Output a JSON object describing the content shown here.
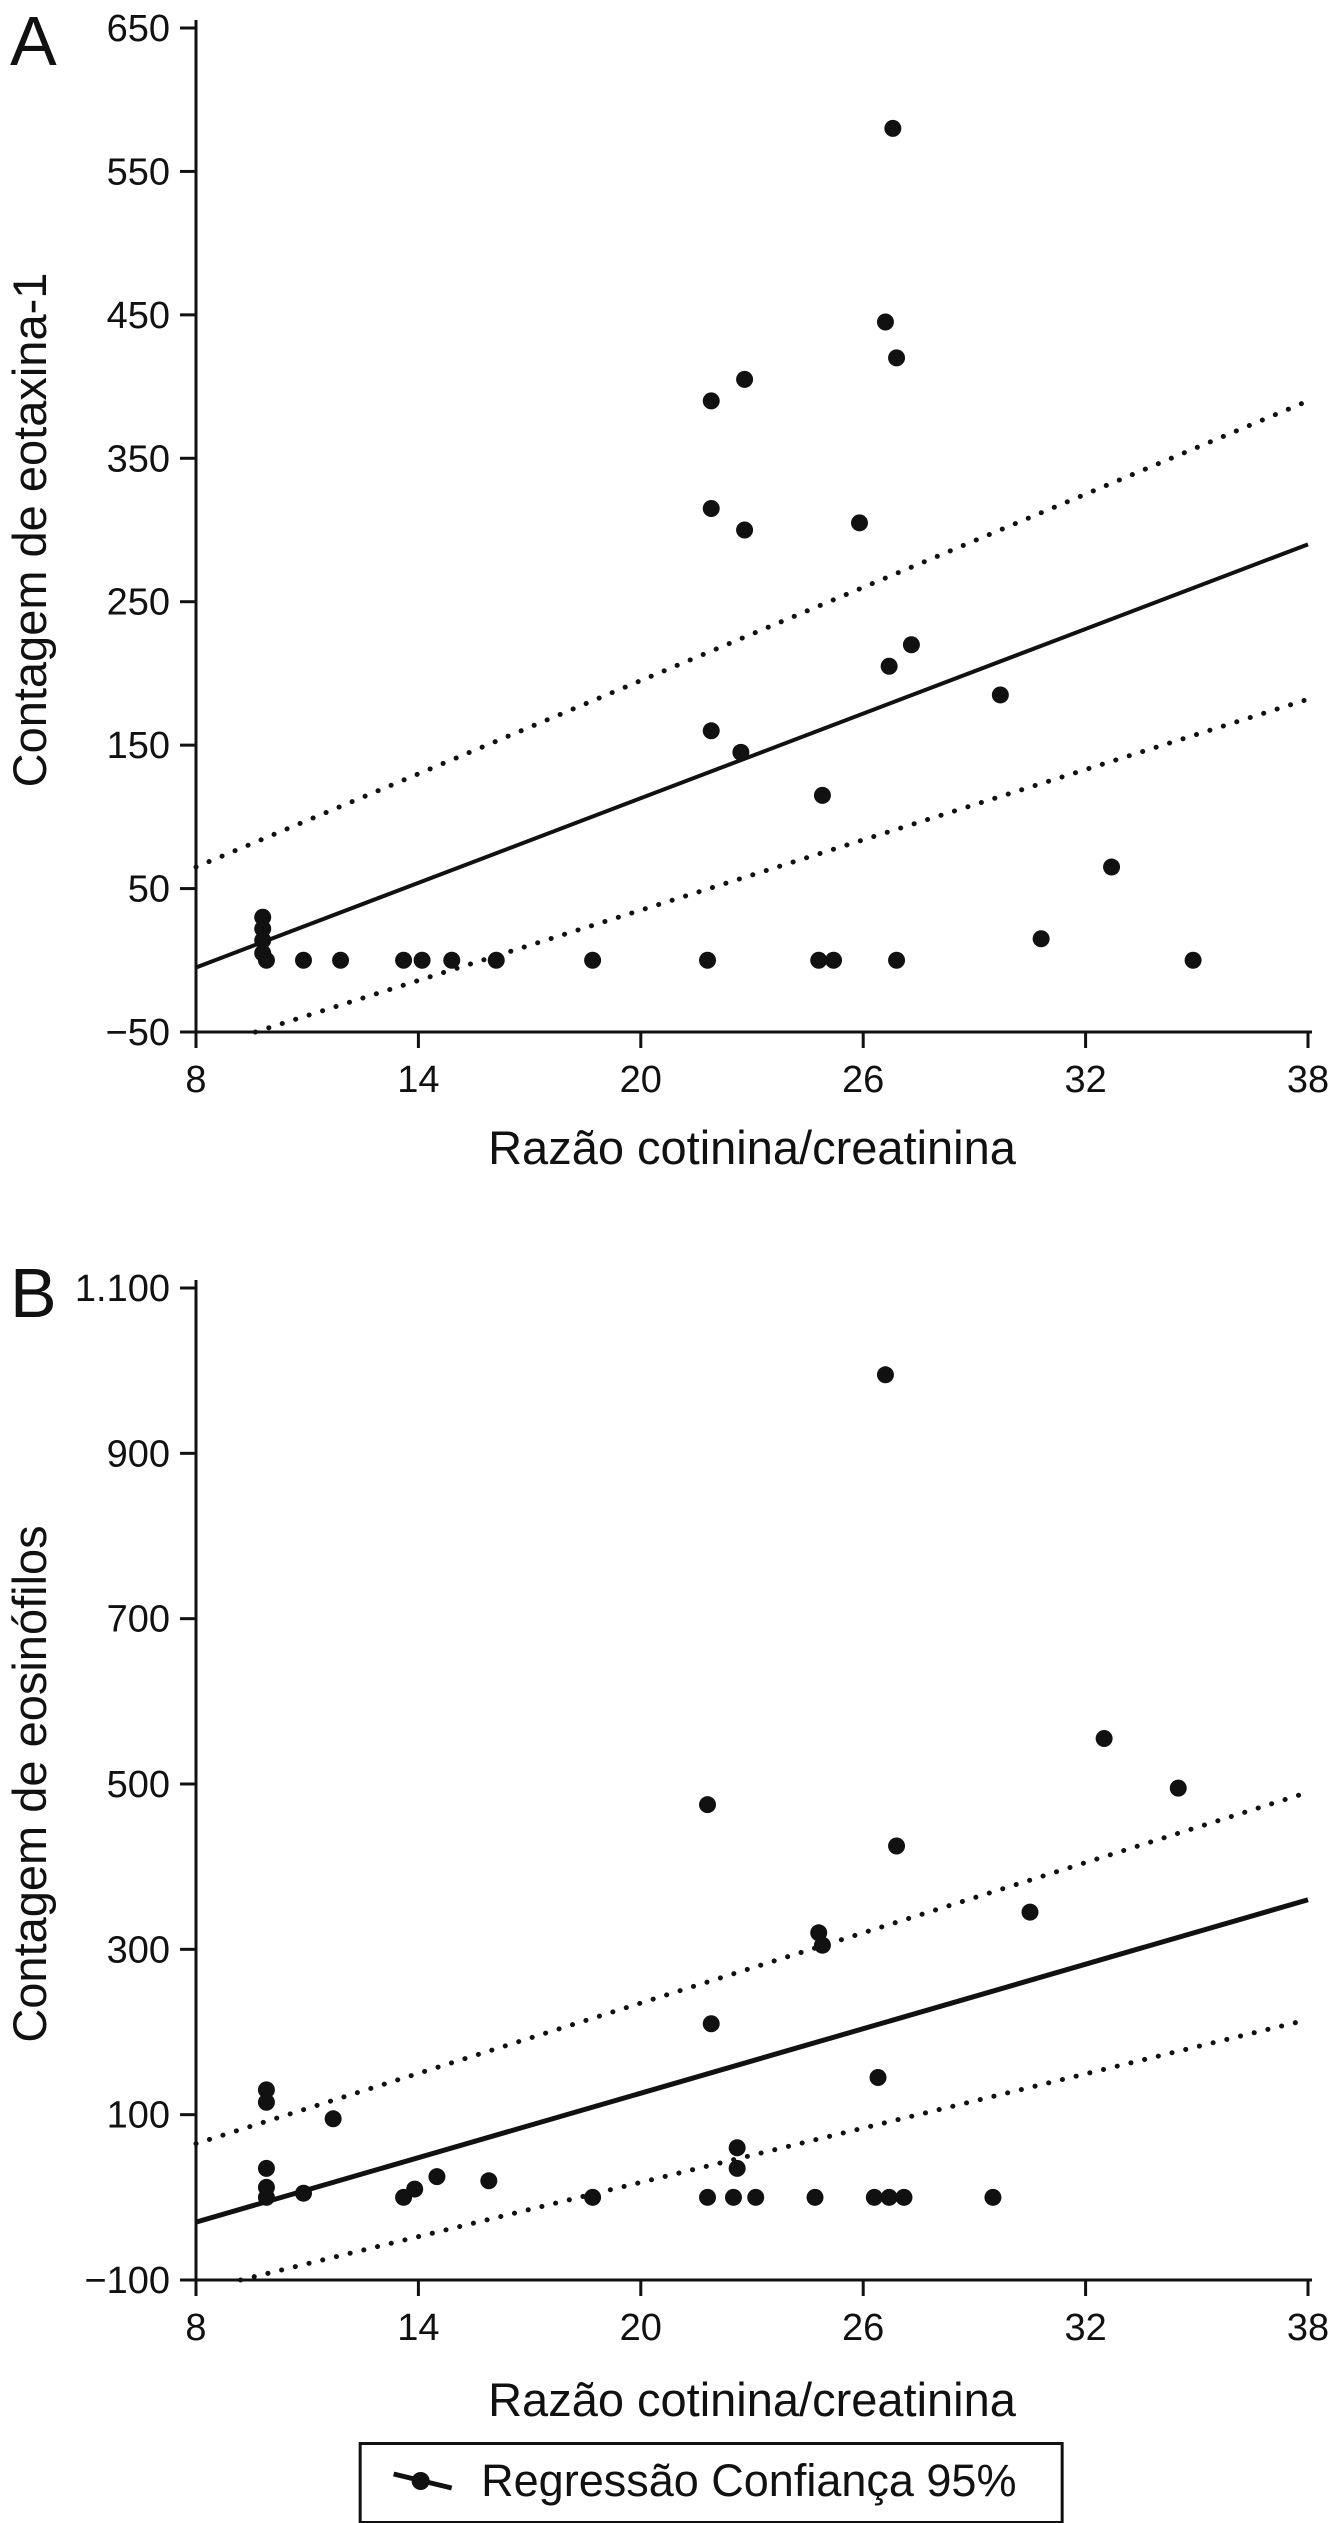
{
  "figure": {
    "background": "#ffffff",
    "ink": "#111111"
  },
  "legend": {
    "label": "Regressão Confiança 95%",
    "icon": "regression-line-with-point-icon"
  },
  "chart_data": [
    {
      "type": "scatter",
      "panel": "A",
      "xlabel": "Razão cotinina/creatinina",
      "ylabel": "Contagem de eotaxina-1",
      "xlim": [
        8,
        38
      ],
      "ylim": [
        -50,
        650
      ],
      "xticks": [
        8,
        14,
        20,
        26,
        32,
        38
      ],
      "xtick_labels": [
        "8",
        "14",
        "20",
        "26",
        "32",
        "38"
      ],
      "yticks": [
        -50,
        50,
        150,
        250,
        350,
        450,
        550,
        650
      ],
      "ytick_labels": [
        "−50",
        "50",
        "150",
        "250",
        "350",
        "450",
        "550",
        "650"
      ],
      "grid": false,
      "legend_position": "none",
      "line_width": 4,
      "points": [
        [
          9.8,
          30
        ],
        [
          9.8,
          22
        ],
        [
          9.8,
          14
        ],
        [
          9.8,
          5
        ],
        [
          9.9,
          0
        ],
        [
          10.9,
          0
        ],
        [
          11.9,
          0
        ],
        [
          13.6,
          0
        ],
        [
          14.1,
          0
        ],
        [
          14.9,
          0
        ],
        [
          16.1,
          0
        ],
        [
          18.7,
          0
        ],
        [
          21.9,
          390
        ],
        [
          21.9,
          315
        ],
        [
          21.9,
          160
        ],
        [
          21.8,
          0
        ],
        [
          22.8,
          405
        ],
        [
          22.8,
          300
        ],
        [
          22.7,
          145
        ],
        [
          24.9,
          115
        ],
        [
          24.8,
          0
        ],
        [
          25.2,
          0
        ],
        [
          25.9,
          305
        ],
        [
          26.8,
          580
        ],
        [
          26.6,
          445
        ],
        [
          26.9,
          420
        ],
        [
          26.7,
          205
        ],
        [
          27.3,
          220
        ],
        [
          26.9,
          0
        ],
        [
          29.7,
          185
        ],
        [
          30.8,
          15
        ],
        [
          32.7,
          65
        ],
        [
          34.9,
          0
        ]
      ],
      "regression_line": {
        "x1": 8,
        "y1": -5,
        "x2": 38,
        "y2": 290
      },
      "ci_upper": {
        "x1": 8,
        "y1": 65,
        "x2": 38,
        "y2": 390
      },
      "ci_lower": {
        "x1": 9.6,
        "y1": -50,
        "x2": 38,
        "y2": 182
      }
    },
    {
      "type": "scatter",
      "panel": "B",
      "xlabel": "Razão cotinina/creatinina",
      "ylabel": "Contagem de eosinófilos",
      "xlim": [
        8,
        38
      ],
      "ylim": [
        -100,
        1100
      ],
      "xticks": [
        8,
        14,
        20,
        26,
        32,
        38
      ],
      "xtick_labels": [
        "8",
        "14",
        "20",
        "26",
        "32",
        "38"
      ],
      "yticks": [
        -100,
        100,
        300,
        500,
        700,
        900,
        1100
      ],
      "ytick_labels": [
        "−100",
        "100",
        "300",
        "500",
        "700",
        "900",
        "1.100"
      ],
      "grid": false,
      "legend_position": "bottom",
      "line_width": 5,
      "points": [
        [
          9.9,
          130
        ],
        [
          9.9,
          115
        ],
        [
          9.9,
          35
        ],
        [
          9.9,
          12
        ],
        [
          9.9,
          0
        ],
        [
          10.9,
          5
        ],
        [
          11.7,
          95
        ],
        [
          13.6,
          0
        ],
        [
          13.9,
          10
        ],
        [
          14.5,
          25
        ],
        [
          15.9,
          20
        ],
        [
          18.7,
          0
        ],
        [
          21.8,
          475
        ],
        [
          21.9,
          210
        ],
        [
          21.8,
          0
        ],
        [
          22.6,
          60
        ],
        [
          22.6,
          35
        ],
        [
          22.5,
          0
        ],
        [
          23.1,
          0
        ],
        [
          24.8,
          320
        ],
        [
          24.9,
          305
        ],
        [
          24.7,
          0
        ],
        [
          26.6,
          995
        ],
        [
          26.9,
          425
        ],
        [
          26.4,
          145
        ],
        [
          26.3,
          0
        ],
        [
          26.7,
          0
        ],
        [
          27.1,
          0
        ],
        [
          29.5,
          0
        ],
        [
          30.5,
          345
        ],
        [
          32.5,
          555
        ],
        [
          34.5,
          495
        ]
      ],
      "regression_line": {
        "x1": 8,
        "y1": -30,
        "x2": 38,
        "y2": 360
      },
      "ci_upper": {
        "x1": 8,
        "y1": 65,
        "x2": 38,
        "y2": 490
      },
      "ci_lower": {
        "x1": 9.2,
        "y1": -100,
        "x2": 38,
        "y2": 215
      }
    }
  ]
}
